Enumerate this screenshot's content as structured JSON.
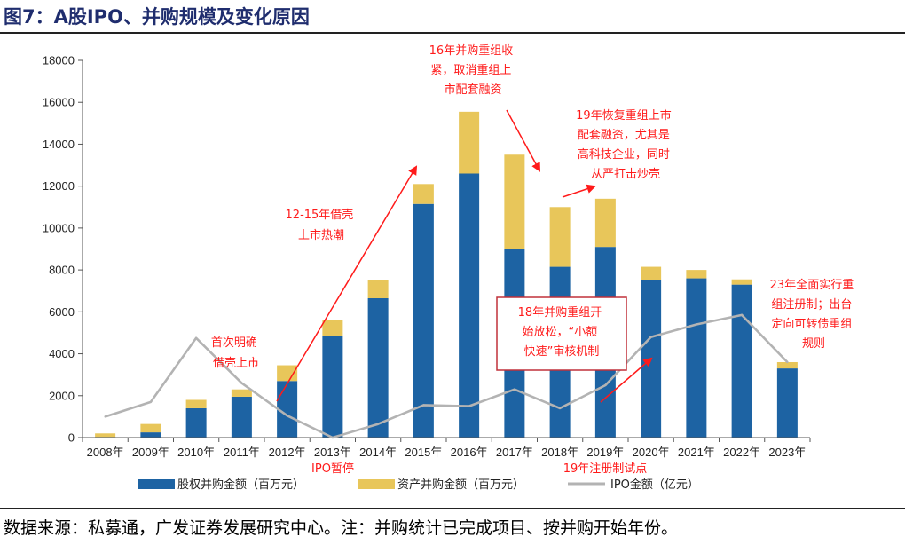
{
  "header": {
    "title": "图7：A股IPO、并购规模及变化原因"
  },
  "footer": {
    "source": "数据来源：私募通，广发证券发展研究中心。注：并购统计已完成项目、按并购开始年份。"
  },
  "colors": {
    "equity": "#1d63a3",
    "asset": "#e8c65a",
    "ipo": "#b3b3b3",
    "annotation": "#ff1a1a"
  },
  "chart_data": {
    "type": "bar",
    "categories": [
      "2008年",
      "2009年",
      "2010年",
      "2011年",
      "2012年",
      "2013年",
      "2014年",
      "2015年",
      "2016年",
      "2017年",
      "2018年",
      "2019年",
      "2020年",
      "2021年",
      "2022年",
      "2023年"
    ],
    "ylim": [
      0,
      18000
    ],
    "yticks": [
      "0",
      "2000",
      "4000",
      "6000",
      "8000",
      "10000",
      "12000",
      "14000",
      "16000",
      "18000"
    ],
    "stacked": true,
    "series": [
      {
        "name": "股权并购金额（百万元）",
        "kind": "bar",
        "values": [
          30,
          250,
          1400,
          1950,
          2700,
          4850,
          6650,
          11150,
          12600,
          9000,
          8150,
          9100,
          7500,
          7600,
          7300,
          3300
        ]
      },
      {
        "name": "资产并购金额（百万元）",
        "kind": "bar",
        "values": [
          170,
          400,
          400,
          350,
          750,
          750,
          850,
          950,
          2950,
          4500,
          2850,
          2300,
          650,
          400,
          250,
          300
        ]
      },
      {
        "name": "IPO金额（亿元）",
        "kind": "line",
        "values": [
          1000,
          1700,
          4750,
          2600,
          1050,
          0,
          650,
          1550,
          1500,
          2300,
          1400,
          2500,
          4800,
          5400,
          5850,
          3600
        ]
      }
    ],
    "annotations": {
      "a2010": [
        "首次明确",
        "借壳上市"
      ],
      "a2012": [
        "12-15年借壳",
        "上市热潮"
      ],
      "a2016": [
        "16年并购重组收",
        "紧，取消重组上",
        "市配套融资"
      ],
      "a2019": [
        "19年恢复重组上市",
        "配套融资，尤其是",
        "高科技企业，同时",
        "从严打击炒壳"
      ],
      "a2018box": [
        "18年并购重组开",
        "始放松，“小额",
        "快速”审核机制"
      ],
      "a2023": [
        "23年全面实行重",
        "组注册制；出台",
        "定向可转债重组",
        "规则"
      ],
      "ipo_pause": "IPO暂停",
      "reg_trial": "19年注册制试点"
    }
  }
}
